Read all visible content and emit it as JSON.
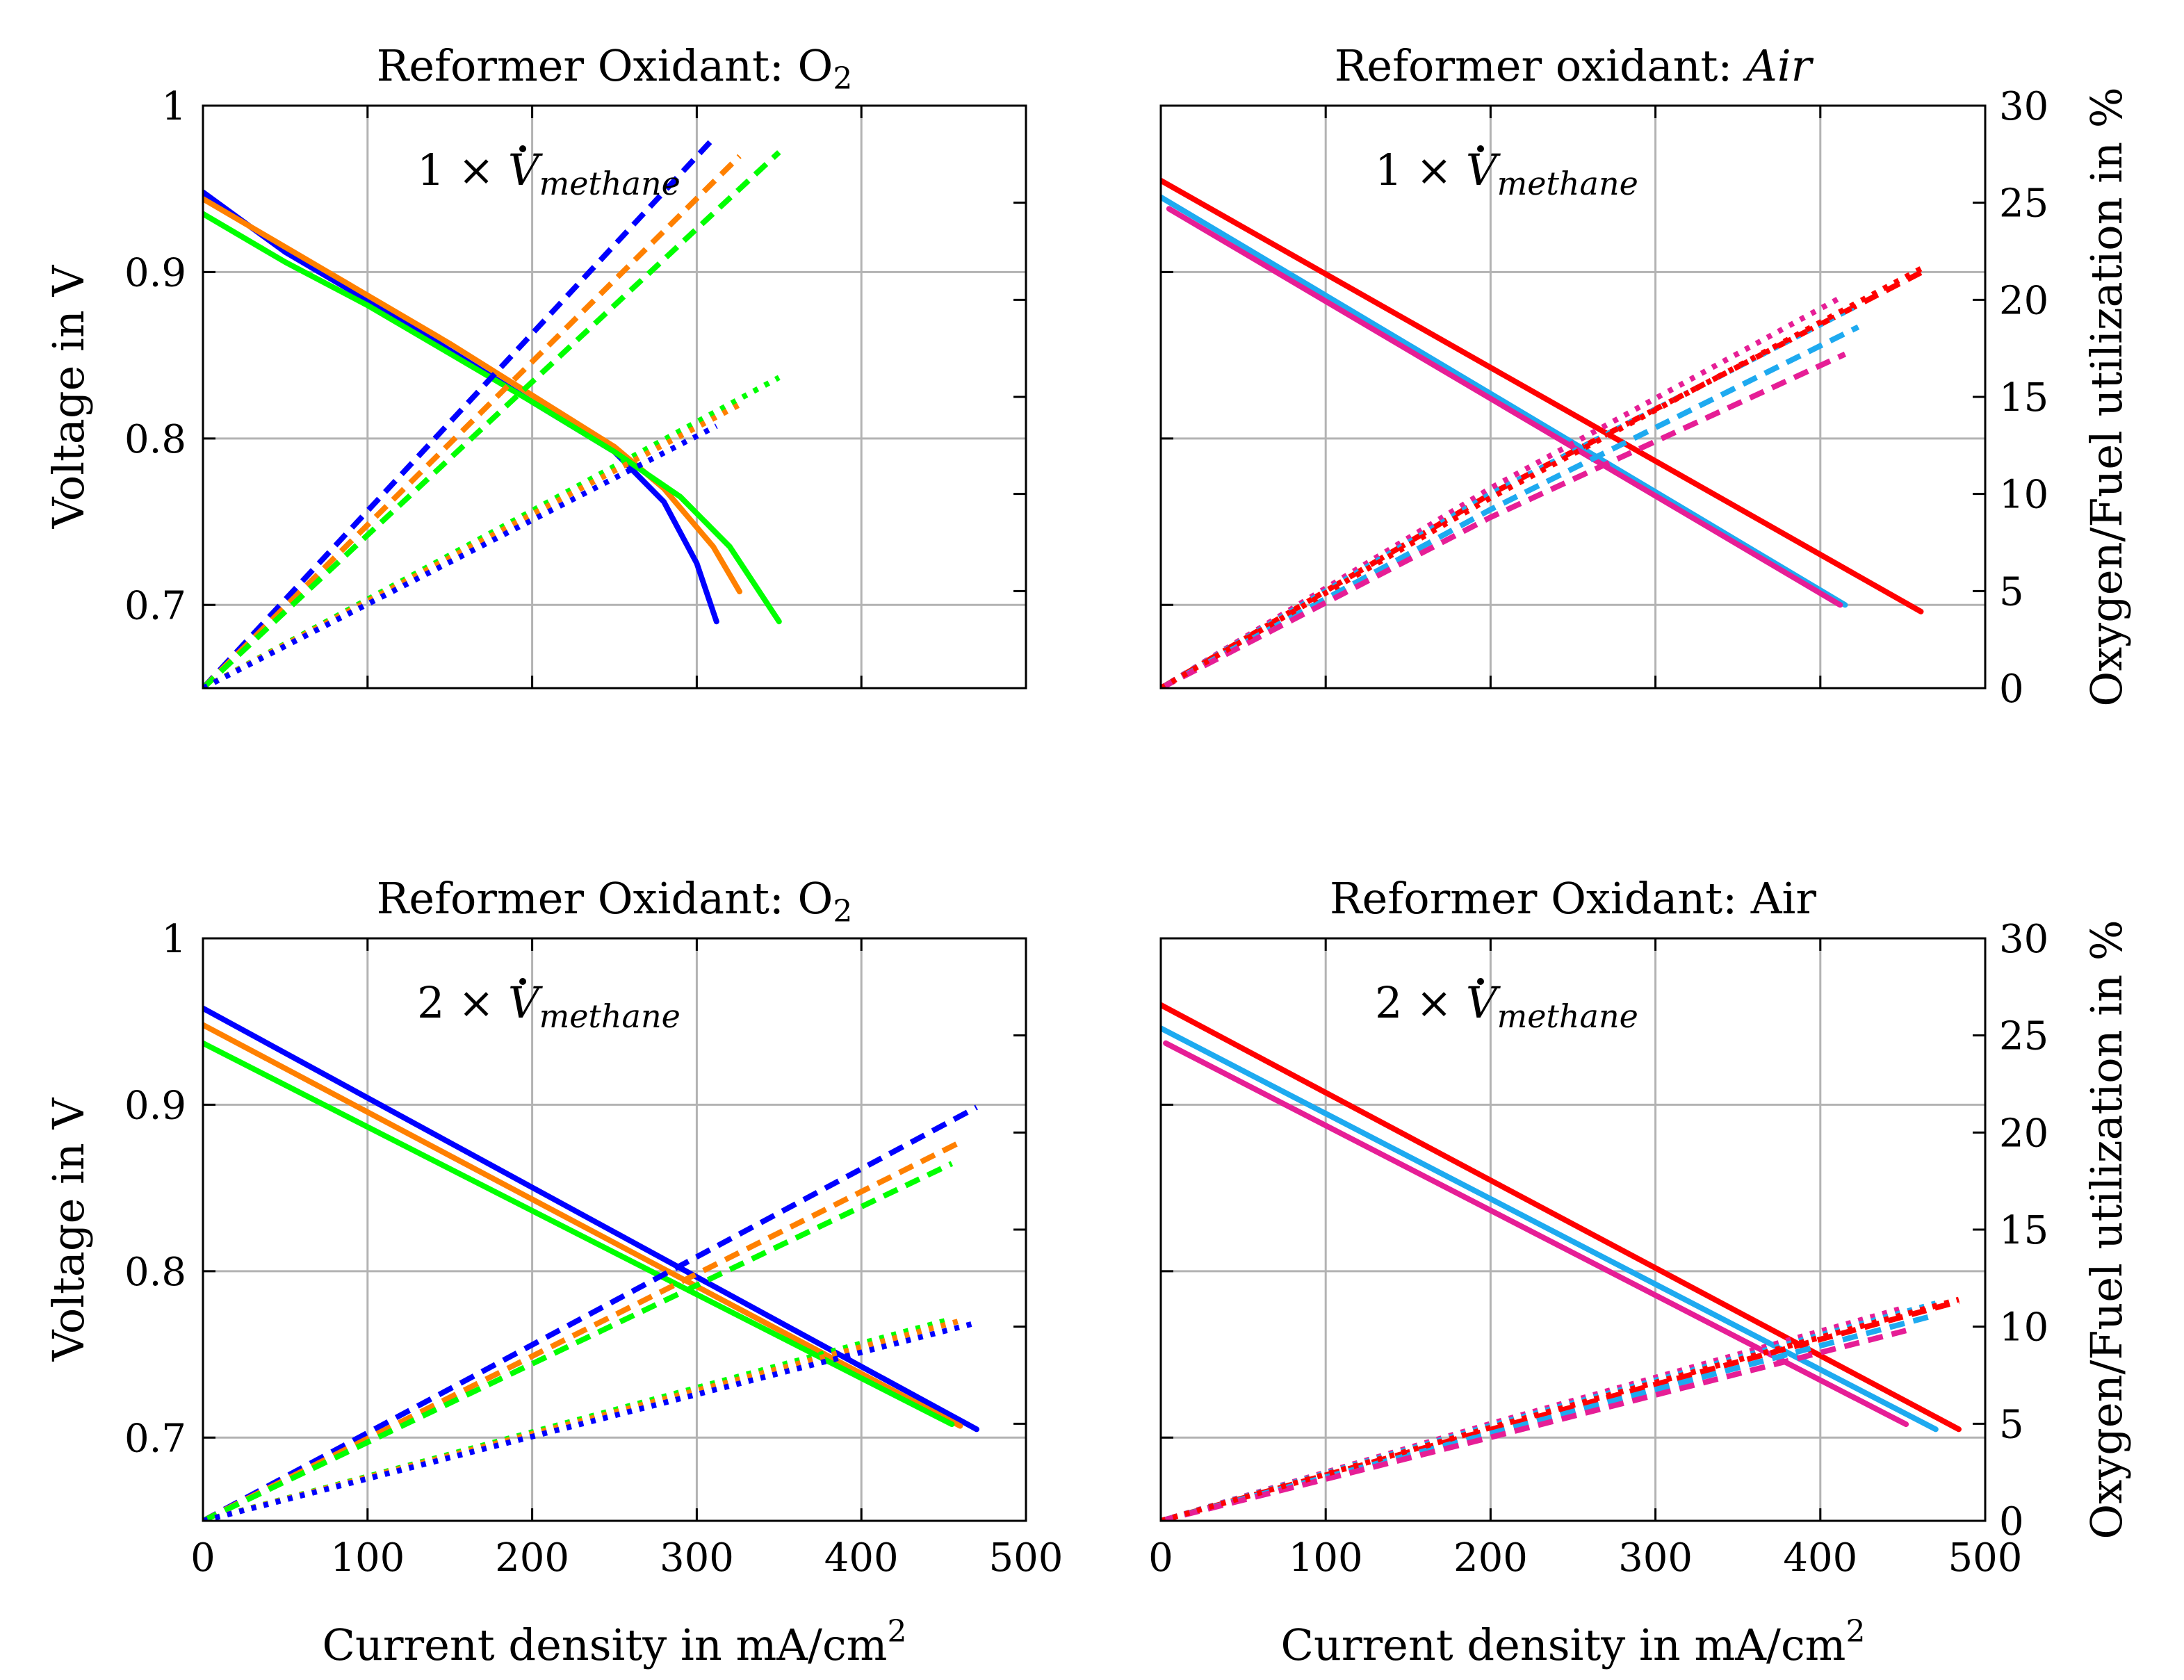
{
  "figure": {
    "shared_xlabel": "Current density in mA/cm²",
    "left_ylabel": "Voltage in V",
    "right_ylabel": "Oxygen/Fuel utilization in %",
    "colors": {
      "blue": "#0000ff",
      "orange": "#ff8000",
      "green": "#00ff00",
      "red": "#ff0000",
      "cyan": "#1eaaf0",
      "magenta": "#e61e96"
    }
  },
  "chart_data": [
    {
      "type": "line",
      "title": "Reformer Oxidant: O₂",
      "annotation": "1 × V̇methane",
      "xlabel": "",
      "ylabel": "Voltage in V",
      "xlim": [
        0,
        500
      ],
      "ylim": [
        0.65,
        1.0
      ],
      "xticks": [],
      "yticks": [
        "0.7",
        "0.8",
        "0.9",
        "1"
      ],
      "y2lim": [
        0,
        30
      ],
      "y2ticks": [],
      "grid": true,
      "series": [
        {
          "name": "voltage-blue",
          "color": "#0000ff",
          "style": "solid",
          "axis": "left",
          "x": [
            0,
            50,
            100,
            150,
            200,
            250,
            280,
            300,
            312
          ],
          "y": [
            0.948,
            0.912,
            0.883,
            0.853,
            0.822,
            0.792,
            0.762,
            0.725,
            0.69
          ]
        },
        {
          "name": "voltage-orange",
          "color": "#ff8000",
          "style": "solid",
          "axis": "left",
          "x": [
            0,
            50,
            100,
            150,
            200,
            250,
            280,
            310,
            326
          ],
          "y": [
            0.944,
            0.915,
            0.886,
            0.857,
            0.826,
            0.795,
            0.77,
            0.735,
            0.708
          ]
        },
        {
          "name": "voltage-green",
          "color": "#00ff00",
          "style": "solid",
          "axis": "left",
          "x": [
            0,
            50,
            100,
            150,
            200,
            250,
            290,
            320,
            350
          ],
          "y": [
            0.935,
            0.906,
            0.88,
            0.851,
            0.822,
            0.792,
            0.765,
            0.735,
            0.69
          ]
        },
        {
          "name": "oxygen-blue",
          "color": "#0000ff",
          "style": "dashed",
          "axis": "right",
          "x": [
            0,
            310
          ],
          "y": [
            0,
            28.3
          ]
        },
        {
          "name": "oxygen-orange",
          "color": "#ff8000",
          "style": "dashed",
          "axis": "right",
          "x": [
            0,
            326
          ],
          "y": [
            0,
            27.4
          ]
        },
        {
          "name": "oxygen-green",
          "color": "#00ff00",
          "style": "dashed",
          "axis": "right",
          "x": [
            0,
            350
          ],
          "y": [
            0,
            27.6
          ]
        },
        {
          "name": "fuel-green",
          "color": "#00ff00",
          "style": "dotted",
          "axis": "right",
          "x": [
            0,
            350
          ],
          "y": [
            0,
            16.0
          ]
        },
        {
          "name": "fuel-orange",
          "color": "#ff8000",
          "style": "dotted",
          "axis": "right",
          "x": [
            0,
            326
          ],
          "y": [
            0,
            14.6
          ]
        },
        {
          "name": "fuel-blue",
          "color": "#0000ff",
          "style": "dotted",
          "axis": "right",
          "x": [
            0,
            312
          ],
          "y": [
            0,
            13.5
          ]
        }
      ]
    },
    {
      "type": "line",
      "title": "Reformer oxidant: ",
      "title_italic": "Air",
      "annotation": "1 × V̇methane",
      "xlabel": "",
      "ylabel": "",
      "xlim": [
        0,
        500
      ],
      "ylim": [
        0.65,
        1.0
      ],
      "xticks": [],
      "yticks": [],
      "y2lim": [
        0,
        30
      ],
      "y2ticks": [
        "0",
        "5",
        "10",
        "15",
        "20",
        "25",
        "30"
      ],
      "y2label": "Oxygen/Fuel utilization in %",
      "grid": true,
      "series": [
        {
          "name": "voltage-red",
          "color": "#ff0000",
          "style": "solid",
          "axis": "left",
          "x": [
            0,
            461
          ],
          "y": [
            0.955,
            0.696
          ]
        },
        {
          "name": "voltage-cyan",
          "color": "#1eaaf0",
          "style": "solid",
          "axis": "left",
          "x": [
            0,
            415
          ],
          "y": [
            0.945,
            0.7
          ]
        },
        {
          "name": "voltage-magenta",
          "color": "#e61e96",
          "style": "solid",
          "axis": "left",
          "x": [
            5,
            412
          ],
          "y": [
            0.938,
            0.7
          ]
        },
        {
          "name": "oxygen-red",
          "color": "#ff0000",
          "style": "dashed",
          "axis": "right",
          "x": [
            0,
            200,
            461
          ],
          "y": [
            0,
            10.0,
            21.4
          ]
        },
        {
          "name": "oxygen-cyan",
          "color": "#1eaaf0",
          "style": "dashed",
          "axis": "right",
          "x": [
            0,
            200,
            423
          ],
          "y": [
            0,
            9.2,
            18.6
          ]
        },
        {
          "name": "oxygen-magenta",
          "color": "#e61e96",
          "style": "dashed",
          "axis": "right",
          "x": [
            0,
            200,
            415
          ],
          "y": [
            0,
            8.8,
            17.2
          ]
        },
        {
          "name": "fuel-magenta",
          "color": "#e61e96",
          "style": "dotted",
          "axis": "right",
          "x": [
            0,
            200,
            412
          ],
          "y": [
            0,
            10.3,
            20.1
          ]
        },
        {
          "name": "fuel-cyan",
          "color": "#1eaaf0",
          "style": "dotted",
          "axis": "right",
          "x": [
            0,
            200,
            420
          ],
          "y": [
            0,
            10.0,
            19.6
          ]
        },
        {
          "name": "fuel-red",
          "color": "#ff0000",
          "style": "dotted",
          "axis": "right",
          "x": [
            0,
            200,
            461
          ],
          "y": [
            0,
            9.8,
            21.6
          ]
        }
      ]
    },
    {
      "type": "line",
      "title": "Reformer Oxidant: O₂",
      "annotation": "2 × V̇methane",
      "xlabel": "Current density in mA/cm²",
      "ylabel": "Voltage in V",
      "xlim": [
        0,
        500
      ],
      "ylim": [
        0.65,
        1.0
      ],
      "xticks": [
        "0",
        "100",
        "200",
        "300",
        "400",
        "500"
      ],
      "yticks": [
        "0.7",
        "0.8",
        "0.9",
        "1"
      ],
      "y2lim": [
        0,
        30
      ],
      "y2ticks": [],
      "grid": true,
      "series": [
        {
          "name": "voltage-blue",
          "color": "#0000ff",
          "style": "solid",
          "axis": "left",
          "x": [
            0,
            470
          ],
          "y": [
            0.958,
            0.705
          ]
        },
        {
          "name": "voltage-orange",
          "color": "#ff8000",
          "style": "solid",
          "axis": "left",
          "x": [
            0,
            460
          ],
          "y": [
            0.948,
            0.707
          ]
        },
        {
          "name": "voltage-green",
          "color": "#00ff00",
          "style": "solid",
          "axis": "left",
          "x": [
            0,
            455
          ],
          "y": [
            0.937,
            0.708
          ]
        },
        {
          "name": "oxygen-blue",
          "color": "#0000ff",
          "style": "dashed",
          "axis": "right",
          "x": [
            0,
            470
          ],
          "y": [
            0,
            21.3
          ]
        },
        {
          "name": "oxygen-orange",
          "color": "#ff8000",
          "style": "dashed",
          "axis": "right",
          "x": [
            0,
            460
          ],
          "y": [
            0,
            19.5
          ]
        },
        {
          "name": "oxygen-green",
          "color": "#00ff00",
          "style": "dashed",
          "axis": "right",
          "x": [
            0,
            455
          ],
          "y": [
            0,
            18.4
          ]
        },
        {
          "name": "fuel-green",
          "color": "#00ff00",
          "style": "dotted",
          "axis": "right",
          "x": [
            0,
            455
          ],
          "y": [
            0,
            10.4
          ]
        },
        {
          "name": "fuel-orange",
          "color": "#ff8000",
          "style": "dotted",
          "axis": "right",
          "x": [
            0,
            460
          ],
          "y": [
            0,
            10.3
          ]
        },
        {
          "name": "fuel-blue",
          "color": "#0000ff",
          "style": "dotted",
          "axis": "right",
          "x": [
            0,
            470
          ],
          "y": [
            0,
            10.2
          ]
        }
      ]
    },
    {
      "type": "line",
      "title": "Reformer Oxidant: Air",
      "annotation": "2 × V̇methane",
      "xlabel": "Current density in mA/cm²",
      "ylabel": "",
      "xlim": [
        0,
        500
      ],
      "ylim": [
        0.65,
        1.0
      ],
      "xticks": [
        "0",
        "100",
        "200",
        "300",
        "400",
        "500"
      ],
      "yticks": [],
      "y2lim": [
        0,
        30
      ],
      "y2ticks": [
        "0",
        "5",
        "10",
        "15",
        "20",
        "25",
        "30"
      ],
      "y2label": "Oxygen/Fuel utilization in %",
      "grid": true,
      "series": [
        {
          "name": "voltage-red",
          "color": "#ff0000",
          "style": "solid",
          "axis": "left",
          "x": [
            0,
            484
          ],
          "y": [
            0.96,
            0.705
          ]
        },
        {
          "name": "voltage-cyan",
          "color": "#1eaaf0",
          "style": "solid",
          "axis": "left",
          "x": [
            0,
            470
          ],
          "y": [
            0.946,
            0.705
          ]
        },
        {
          "name": "voltage-magenta",
          "color": "#e61e96",
          "style": "solid",
          "axis": "left",
          "x": [
            3,
            452
          ],
          "y": [
            0.937,
            0.708
          ]
        },
        {
          "name": "oxygen-red",
          "color": "#ff0000",
          "style": "dashed",
          "axis": "right",
          "x": [
            0,
            200,
            484
          ],
          "y": [
            0,
            4.7,
            11.3
          ]
        },
        {
          "name": "oxygen-cyan",
          "color": "#1eaaf0",
          "style": "dashed",
          "axis": "right",
          "x": [
            0,
            200,
            470
          ],
          "y": [
            0,
            4.5,
            10.6
          ]
        },
        {
          "name": "oxygen-magenta",
          "color": "#e61e96",
          "style": "dashed",
          "axis": "right",
          "x": [
            0,
            200,
            452
          ],
          "y": [
            0,
            4.3,
            9.8
          ]
        },
        {
          "name": "fuel-magenta",
          "color": "#e61e96",
          "style": "dotted",
          "axis": "right",
          "x": [
            0,
            200,
            452
          ],
          "y": [
            0,
            5.0,
            11.0
          ]
        },
        {
          "name": "fuel-cyan",
          "color": "#1eaaf0",
          "style": "dotted",
          "axis": "right",
          "x": [
            0,
            200,
            470
          ],
          "y": [
            0,
            4.9,
            11.2
          ]
        },
        {
          "name": "fuel-red",
          "color": "#ff0000",
          "style": "dotted",
          "axis": "right",
          "x": [
            0,
            200,
            484
          ],
          "y": [
            0,
            4.8,
            11.4
          ]
        }
      ]
    }
  ]
}
